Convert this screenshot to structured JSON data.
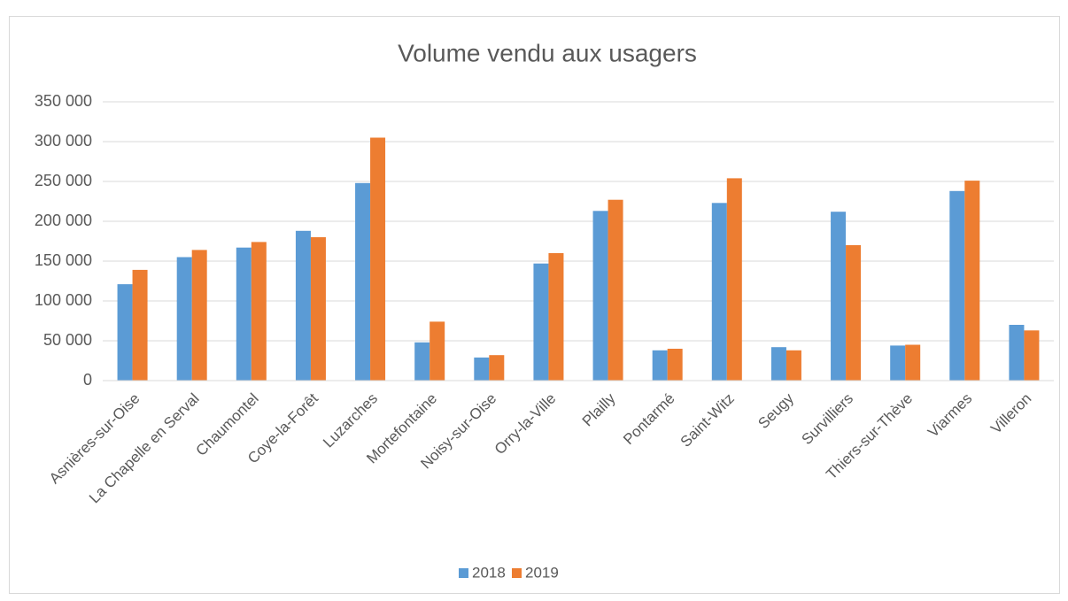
{
  "chart_data": {
    "type": "bar",
    "title": "Volume vendu aux usagers",
    "categories": [
      "Asnières-sur-Oise",
      "La Chapelle en Serval",
      "Chaumontel",
      "Coye-la-Forêt",
      "Luzarches",
      "Mortefontaine",
      "Noisy-sur-Oise",
      "Orry-la-Ville",
      "Plailly",
      "Pontarmé",
      "Saint-Witz",
      "Seugy",
      "Survilliers",
      "Thiers-sur-Thève",
      "Viarmes",
      "Villeron"
    ],
    "series": [
      {
        "name": "2018",
        "color": "#5b9bd5",
        "values": [
          121000,
          155000,
          167000,
          188000,
          248000,
          48000,
          29000,
          147000,
          213000,
          38000,
          223000,
          42000,
          212000,
          44000,
          238000,
          70000
        ]
      },
      {
        "name": "2019",
        "color": "#ed7d31",
        "values": [
          139000,
          164000,
          174000,
          180000,
          305000,
          74000,
          32000,
          160000,
          227000,
          40000,
          254000,
          38000,
          170000,
          45000,
          251000,
          63000
        ]
      }
    ],
    "ylim": [
      0,
      350000
    ],
    "yticks": [
      0,
      {
        "value": 50000,
        "label": "50 000"
      },
      {
        "value": 100000,
        "label": "100 000"
      },
      {
        "value": 150000,
        "label": "150 000"
      },
      {
        "value": 200000,
        "label": "200 000"
      },
      {
        "value": 250000,
        "label": "250 000"
      },
      {
        "value": 300000,
        "label": "300 000"
      },
      {
        "value": 350000,
        "label": "350 000"
      }
    ],
    "grid": true,
    "legend": "bottom"
  }
}
